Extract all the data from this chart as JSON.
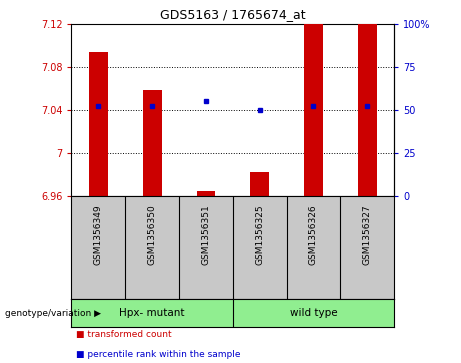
{
  "title": "GDS5163 / 1765674_at",
  "samples": [
    "GSM1356349",
    "GSM1356350",
    "GSM1356351",
    "GSM1356325",
    "GSM1356326",
    "GSM1356327"
  ],
  "red_values": [
    7.094,
    7.058,
    6.965,
    6.982,
    7.12,
    7.12
  ],
  "blue_percentiles": [
    52,
    52,
    55,
    50,
    52,
    52
  ],
  "ymin": 6.96,
  "ymax": 7.12,
  "y2min": 0,
  "y2max": 100,
  "yticks": [
    6.96,
    7.0,
    7.04,
    7.08,
    7.12
  ],
  "ytick_labels": [
    "6.96",
    "7",
    "7.04",
    "7.08",
    "7.12"
  ],
  "y2ticks": [
    0,
    25,
    50,
    75,
    100
  ],
  "y2tick_labels": [
    "0",
    "25",
    "50",
    "75",
    "100%"
  ],
  "gridlines": [
    7.0,
    7.04,
    7.08
  ],
  "group1_label": "Hpx- mutant",
  "group2_label": "wild type",
  "group_label": "genotype/variation",
  "legend_red": "transformed count",
  "legend_blue": "percentile rank within the sample",
  "bar_color": "#CC0000",
  "dot_color": "#0000CC",
  "axis_color_left": "#CC0000",
  "axis_color_right": "#0000CC",
  "background_plot": "#FFFFFF",
  "background_sample": "#C8C8C8",
  "background_group": "#90EE90",
  "bar_width": 0.35
}
